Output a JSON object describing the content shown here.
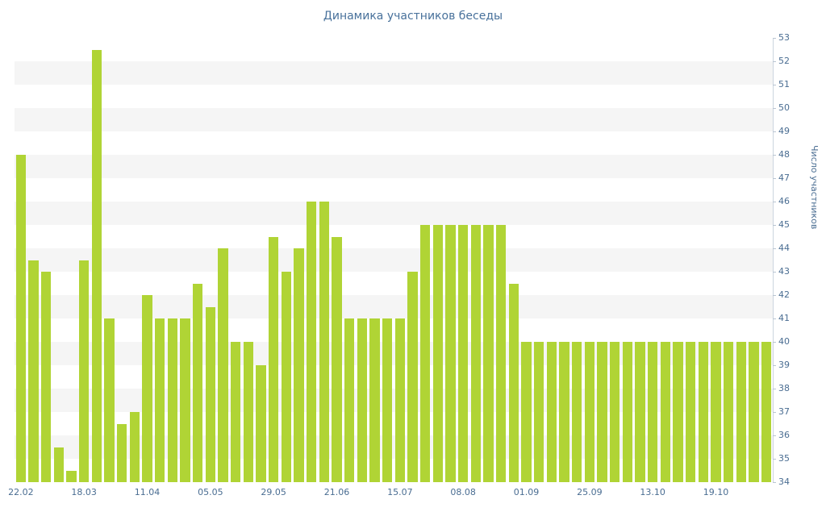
{
  "title": "Динамика участников беседы",
  "y_axis_title": "Число участников",
  "colors": {
    "bar": "#b0d435",
    "title_text": "#48719b",
    "axis_text": "#4a6d92",
    "stripe": "#f5f5f5",
    "axis_line": "#ccd5df"
  },
  "chart_data": {
    "type": "bar",
    "title": "Динамика участников беседы",
    "xlabel": "",
    "ylabel": "Число участников",
    "ylim": [
      34,
      53
    ],
    "y_ticks": [
      34,
      35,
      36,
      37,
      38,
      39,
      40,
      41,
      42,
      43,
      44,
      45,
      46,
      47,
      48,
      49,
      50,
      51,
      52,
      53
    ],
    "y_ticks_position": "right",
    "grid": "alternating horizontal stripes",
    "legend": "none",
    "x_tick_labels": [
      "22.02",
      "18.03",
      "11.04",
      "05.05",
      "29.05",
      "21.06",
      "15.07",
      "08.08",
      "01.09",
      "25.09",
      "13.10",
      "19.10"
    ],
    "x_tick_every": 5,
    "values": [
      48,
      43.5,
      43,
      35.5,
      34.5,
      43.5,
      52.5,
      41,
      36.5,
      37,
      42,
      41,
      41,
      41,
      42.5,
      41.5,
      44,
      40,
      40,
      39,
      44.5,
      43,
      44,
      46,
      46,
      44.5,
      41,
      41,
      41,
      41,
      41,
      43,
      45,
      45,
      45,
      45,
      45,
      45,
      45,
      42.5,
      40,
      40,
      40,
      40,
      40,
      40,
      40,
      40,
      40,
      40,
      40,
      40,
      40,
      40,
      40,
      40,
      40,
      40,
      40,
      40
    ]
  }
}
